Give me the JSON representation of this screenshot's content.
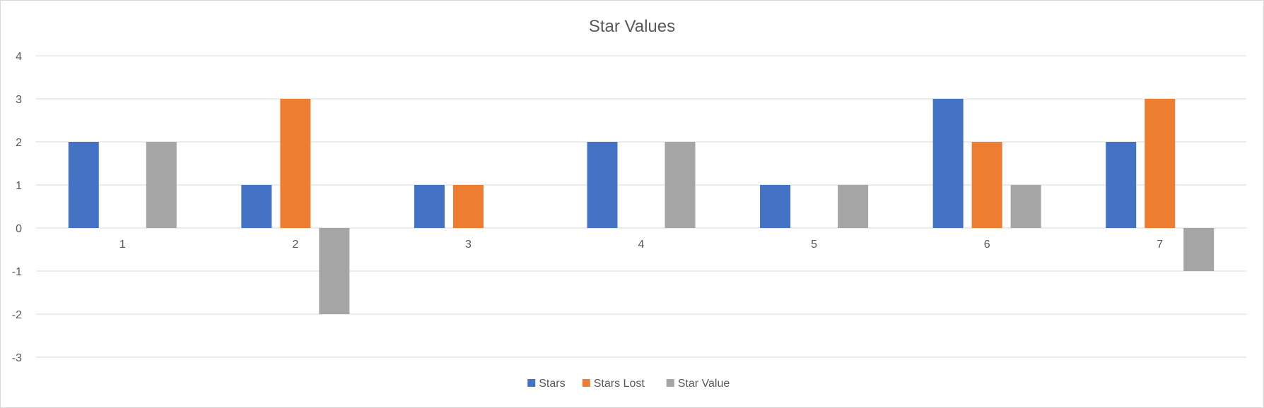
{
  "chart_data": {
    "type": "bar",
    "title": "Star Values",
    "xlabel": "",
    "ylabel": "",
    "categories": [
      "1",
      "2",
      "3",
      "4",
      "5",
      "6",
      "7"
    ],
    "series": [
      {
        "name": "Stars",
        "color": "#4472C4",
        "values": [
          2,
          1,
          1,
          2,
          1,
          3,
          2
        ]
      },
      {
        "name": "Stars Lost",
        "color": "#ED7D31",
        "values": [
          0,
          3,
          1,
          0,
          0,
          2,
          3
        ]
      },
      {
        "name": "Star Value",
        "color": "#A5A5A5",
        "values": [
          2,
          -2,
          0,
          2,
          1,
          1,
          -1
        ]
      }
    ],
    "ylim": [
      -3,
      4
    ],
    "yticks": [
      4,
      3,
      2,
      1,
      0,
      -1,
      -2,
      -3
    ],
    "grid": true,
    "legend": "bottom"
  }
}
